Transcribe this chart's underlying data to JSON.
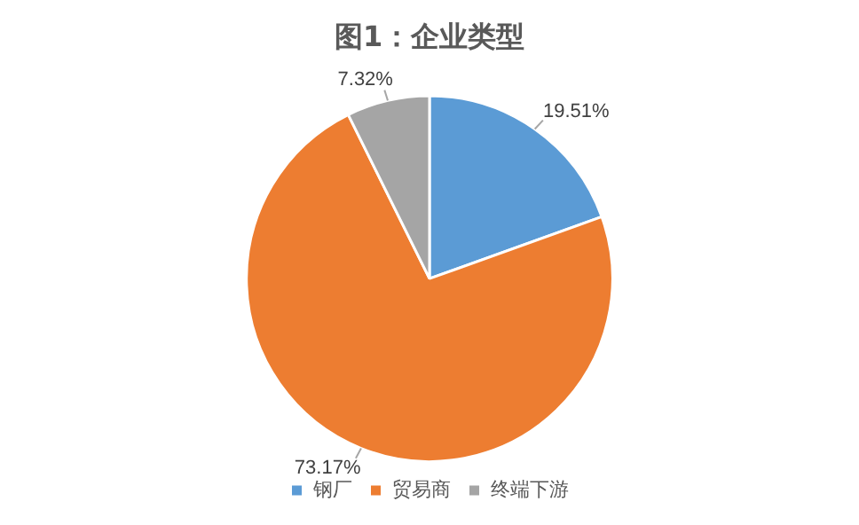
{
  "chart_data": {
    "type": "pie",
    "title": "图1：企业类型",
    "categories": [
      "钢厂",
      "贸易商",
      "终端下游"
    ],
    "values": [
      19.51,
      73.17,
      7.32
    ],
    "colors": [
      "#5b9bd5",
      "#ed7d31",
      "#a5a5a5"
    ],
    "value_labels": [
      "19.51%",
      "73.17%",
      "7.32%"
    ],
    "legend": "bottom"
  }
}
